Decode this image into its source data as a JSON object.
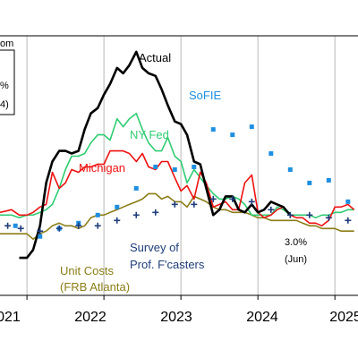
{
  "chart_data": {
    "type": "line",
    "x_ticks": [
      "2021",
      "2022",
      "2023",
      "2024",
      "2025"
    ],
    "xlim": [
      2020.65,
      2025.3
    ],
    "ylim": [
      0,
      9.7
    ],
    "grid": true,
    "legend_fragments": [
      "om",
      "%",
      "4)"
    ],
    "colors": {
      "actual": "#000000",
      "ny_fed": "#2ecc71",
      "michigan": "#ee1111",
      "sofie": "#1f8fe0",
      "survey": "#1f3d7a",
      "unit_costs": "#8a7d16",
      "grid": "#b8b8b8"
    },
    "series": [
      {
        "key": "actual",
        "name": "Actual",
        "style": "line",
        "points": [
          [
            2020.9,
            1.4
          ],
          [
            2021.0,
            1.4
          ],
          [
            2021.08,
            1.7
          ],
          [
            2021.17,
            2.6
          ],
          [
            2021.25,
            4.2
          ],
          [
            2021.33,
            5.0
          ],
          [
            2021.42,
            5.4
          ],
          [
            2021.5,
            5.4
          ],
          [
            2021.58,
            5.3
          ],
          [
            2021.67,
            5.4
          ],
          [
            2021.75,
            6.2
          ],
          [
            2021.83,
            6.8
          ],
          [
            2021.92,
            7.0
          ],
          [
            2022.0,
            7.5
          ],
          [
            2022.08,
            7.9
          ],
          [
            2022.17,
            8.5
          ],
          [
            2022.25,
            8.3
          ],
          [
            2022.33,
            8.6
          ],
          [
            2022.42,
            9.1
          ],
          [
            2022.5,
            8.5
          ],
          [
            2022.58,
            8.3
          ],
          [
            2022.67,
            8.2
          ],
          [
            2022.75,
            7.7
          ],
          [
            2022.83,
            7.1
          ],
          [
            2022.92,
            6.5
          ],
          [
            2023.0,
            6.4
          ],
          [
            2023.08,
            6.0
          ],
          [
            2023.17,
            5.0
          ],
          [
            2023.25,
            4.9
          ],
          [
            2023.33,
            4.0
          ],
          [
            2023.42,
            3.0
          ],
          [
            2023.5,
            3.2
          ],
          [
            2023.58,
            3.7
          ],
          [
            2023.67,
            3.7
          ],
          [
            2023.75,
            3.2
          ],
          [
            2023.83,
            3.1
          ],
          [
            2023.92,
            3.4
          ],
          [
            2024.0,
            3.1
          ],
          [
            2024.08,
            3.2
          ],
          [
            2024.17,
            3.5
          ],
          [
            2024.25,
            3.4
          ],
          [
            2024.33,
            3.3
          ],
          [
            2024.42,
            3.0
          ]
        ]
      },
      {
        "key": "ny_fed",
        "name": "NY Fed",
        "style": "line",
        "points": [
          [
            2020.65,
            3.0
          ],
          [
            2020.8,
            3.0
          ],
          [
            2020.9,
            2.9
          ],
          [
            2021.0,
            3.0
          ],
          [
            2021.08,
            3.0
          ],
          [
            2021.17,
            3.1
          ],
          [
            2021.25,
            3.2
          ],
          [
            2021.33,
            3.4
          ],
          [
            2021.42,
            4.0
          ],
          [
            2021.5,
            4.7
          ],
          [
            2021.58,
            5.2
          ],
          [
            2021.67,
            5.2
          ],
          [
            2021.75,
            5.3
          ],
          [
            2021.83,
            5.7
          ],
          [
            2021.92,
            6.0
          ],
          [
            2022.0,
            6.0
          ],
          [
            2022.08,
            5.8
          ],
          [
            2022.17,
            6.6
          ],
          [
            2022.25,
            6.3
          ],
          [
            2022.33,
            6.6
          ],
          [
            2022.42,
            6.8
          ],
          [
            2022.5,
            6.2
          ],
          [
            2022.58,
            5.7
          ],
          [
            2022.67,
            5.4
          ],
          [
            2022.75,
            5.4
          ],
          [
            2022.83,
            5.9
          ],
          [
            2022.92,
            5.2
          ],
          [
            2023.0,
            5.0
          ],
          [
            2023.08,
            4.2
          ],
          [
            2023.17,
            4.7
          ],
          [
            2023.25,
            4.4
          ],
          [
            2023.33,
            4.1
          ],
          [
            2023.42,
            3.8
          ],
          [
            2023.5,
            3.6
          ],
          [
            2023.58,
            3.6
          ],
          [
            2023.67,
            3.7
          ],
          [
            2023.75,
            3.6
          ],
          [
            2023.83,
            3.4
          ],
          [
            2023.92,
            3.0
          ],
          [
            2024.0,
            3.0
          ],
          [
            2024.08,
            3.0
          ],
          [
            2024.17,
            3.0
          ],
          [
            2024.25,
            3.3
          ],
          [
            2024.33,
            3.2
          ],
          [
            2024.42,
            3.0
          ],
          [
            2024.5,
            3.0
          ],
          [
            2024.58,
            3.0
          ],
          [
            2024.67,
            3.0
          ],
          [
            2024.75,
            2.9
          ],
          [
            2024.83,
            3.0
          ],
          [
            2024.92,
            3.0
          ],
          [
            2025.0,
            3.1
          ],
          [
            2025.08,
            3.1
          ],
          [
            2025.17,
            3.2
          ],
          [
            2025.25,
            3.2
          ]
        ]
      },
      {
        "key": "michigan",
        "name": "Michigan",
        "style": "line",
        "points": [
          [
            2020.65,
            3.1
          ],
          [
            2020.8,
            3.2
          ],
          [
            2020.9,
            3.0
          ],
          [
            2021.0,
            3.0
          ],
          [
            2021.08,
            3.1
          ],
          [
            2021.17,
            3.3
          ],
          [
            2021.25,
            3.4
          ],
          [
            2021.33,
            4.6
          ],
          [
            2021.42,
            4.0
          ],
          [
            2021.5,
            4.2
          ],
          [
            2021.58,
            4.7
          ],
          [
            2021.67,
            4.6
          ],
          [
            2021.75,
            4.8
          ],
          [
            2021.83,
            4.8
          ],
          [
            2021.92,
            4.9
          ],
          [
            2022.0,
            4.9
          ],
          [
            2022.08,
            5.4
          ],
          [
            2022.17,
            5.4
          ],
          [
            2022.25,
            5.4
          ],
          [
            2022.33,
            5.3
          ],
          [
            2022.42,
            5.0
          ],
          [
            2022.5,
            5.3
          ],
          [
            2022.58,
            4.8
          ],
          [
            2022.67,
            4.7
          ],
          [
            2022.75,
            5.0
          ],
          [
            2022.83,
            5.0
          ],
          [
            2022.92,
            4.4
          ],
          [
            2023.0,
            3.9
          ],
          [
            2023.08,
            4.1
          ],
          [
            2023.17,
            3.6
          ],
          [
            2023.25,
            4.6
          ],
          [
            2023.33,
            4.2
          ],
          [
            2023.42,
            3.3
          ],
          [
            2023.5,
            3.4
          ],
          [
            2023.58,
            3.5
          ],
          [
            2023.67,
            3.2
          ],
          [
            2023.75,
            3.2
          ],
          [
            2023.83,
            4.2
          ],
          [
            2023.92,
            4.5
          ],
          [
            2024.0,
            3.1
          ],
          [
            2024.08,
            2.9
          ],
          [
            2024.17,
            3.0
          ],
          [
            2024.25,
            3.2
          ],
          [
            2024.33,
            3.3
          ],
          [
            2024.42,
            3.0
          ],
          [
            2024.5,
            2.9
          ],
          [
            2024.58,
            2.9
          ],
          [
            2024.67,
            2.7
          ],
          [
            2024.75,
            2.7
          ],
          [
            2024.83,
            2.6
          ],
          [
            2024.92,
            2.8
          ],
          [
            2025.0,
            3.3
          ],
          [
            2025.08,
            3.3
          ],
          [
            2025.17,
            3.4
          ],
          [
            2025.25,
            3.2
          ]
        ]
      },
      {
        "key": "unit_costs",
        "name": "Unit Costs (FRB Atlanta)",
        "style": "line",
        "points": [
          [
            2020.65,
            2.3
          ],
          [
            2020.8,
            2.3
          ],
          [
            2020.9,
            2.3
          ],
          [
            2021.0,
            2.3
          ],
          [
            2021.08,
            2.1
          ],
          [
            2021.17,
            2.3
          ],
          [
            2021.25,
            2.4
          ],
          [
            2021.33,
            2.6
          ],
          [
            2021.42,
            2.7
          ],
          [
            2021.5,
            2.6
          ],
          [
            2021.58,
            2.6
          ],
          [
            2021.67,
            2.5
          ],
          [
            2021.75,
            2.6
          ],
          [
            2021.83,
            2.9
          ],
          [
            2021.92,
            3.0
          ],
          [
            2022.0,
            3.0
          ],
          [
            2022.08,
            3.1
          ],
          [
            2022.17,
            3.2
          ],
          [
            2022.25,
            3.3
          ],
          [
            2022.33,
            3.4
          ],
          [
            2022.42,
            3.5
          ],
          [
            2022.5,
            3.6
          ],
          [
            2022.58,
            3.8
          ],
          [
            2022.67,
            3.8
          ],
          [
            2022.75,
            3.6
          ],
          [
            2022.83,
            3.7
          ],
          [
            2022.92,
            3.5
          ],
          [
            2023.0,
            3.5
          ],
          [
            2023.08,
            3.3
          ],
          [
            2023.17,
            3.7
          ],
          [
            2023.25,
            3.6
          ],
          [
            2023.33,
            3.5
          ],
          [
            2023.42,
            3.3
          ],
          [
            2023.5,
            3.2
          ],
          [
            2023.58,
            3.2
          ],
          [
            2023.67,
            3.1
          ],
          [
            2023.75,
            3.1
          ],
          [
            2023.83,
            3.1
          ],
          [
            2023.92,
            3.0
          ],
          [
            2024.0,
            2.9
          ],
          [
            2024.08,
            2.9
          ],
          [
            2024.17,
            2.8
          ],
          [
            2024.25,
            2.8
          ],
          [
            2024.33,
            2.8
          ],
          [
            2024.42,
            2.8
          ],
          [
            2024.5,
            2.8
          ],
          [
            2024.58,
            2.7
          ],
          [
            2024.67,
            2.6
          ],
          [
            2024.75,
            2.6
          ],
          [
            2024.83,
            2.5
          ],
          [
            2024.92,
            2.5
          ],
          [
            2025.0,
            2.5
          ],
          [
            2025.08,
            2.4
          ],
          [
            2025.17,
            2.4
          ],
          [
            2025.25,
            2.4
          ]
        ]
      },
      {
        "key": "sofie",
        "name": "SoFIE",
        "style": "squares",
        "points": [
          [
            2020.85,
            2.6
          ],
          [
            2021.17,
            2.2
          ],
          [
            2021.42,
            2.5
          ],
          [
            2021.67,
            2.7
          ],
          [
            2021.92,
            3.0
          ],
          [
            2022.17,
            3.3
          ],
          [
            2022.42,
            4.0
          ],
          [
            2022.67,
            4.8
          ],
          [
            2022.92,
            4.7
          ],
          [
            2023.17,
            4.8
          ],
          [
            2023.42,
            6.2
          ],
          [
            2023.67,
            6.0
          ],
          [
            2023.92,
            6.3
          ],
          [
            2024.17,
            5.3
          ],
          [
            2024.42,
            4.7
          ],
          [
            2024.67,
            4.2
          ],
          [
            2024.92,
            4.3
          ],
          [
            2025.17,
            3.5
          ]
        ]
      },
      {
        "key": "survey",
        "name": "Survey of Prof. F'casters",
        "style": "plus",
        "points": [
          [
            2020.75,
            2.6
          ],
          [
            2020.92,
            2.5
          ],
          [
            2021.17,
            2.4
          ],
          [
            2021.42,
            2.5
          ],
          [
            2021.67,
            2.6
          ],
          [
            2021.92,
            2.6
          ],
          [
            2022.17,
            2.8
          ],
          [
            2022.42,
            3.0
          ],
          [
            2022.67,
            3.1
          ],
          [
            2022.92,
            3.4
          ],
          [
            2023.17,
            3.4
          ],
          [
            2023.42,
            3.6
          ],
          [
            2023.67,
            3.6
          ],
          [
            2023.92,
            3.5
          ],
          [
            2024.17,
            3.2
          ],
          [
            2024.42,
            3.0
          ],
          [
            2024.67,
            3.0
          ],
          [
            2024.92,
            2.9
          ],
          [
            2025.17,
            2.8
          ]
        ]
      }
    ],
    "annotations": {
      "actual": "Actual",
      "sofie": "SoFIE",
      "ny_fed": "NY Fed",
      "michigan": "Michigan",
      "survey_line1": "Survey of",
      "survey_line2": "Prof. F'casters",
      "unit_line1": "Unit Costs",
      "unit_line2": "(FRB Atlanta)",
      "end_value": "3.0%",
      "end_date": "(Jun)"
    }
  }
}
